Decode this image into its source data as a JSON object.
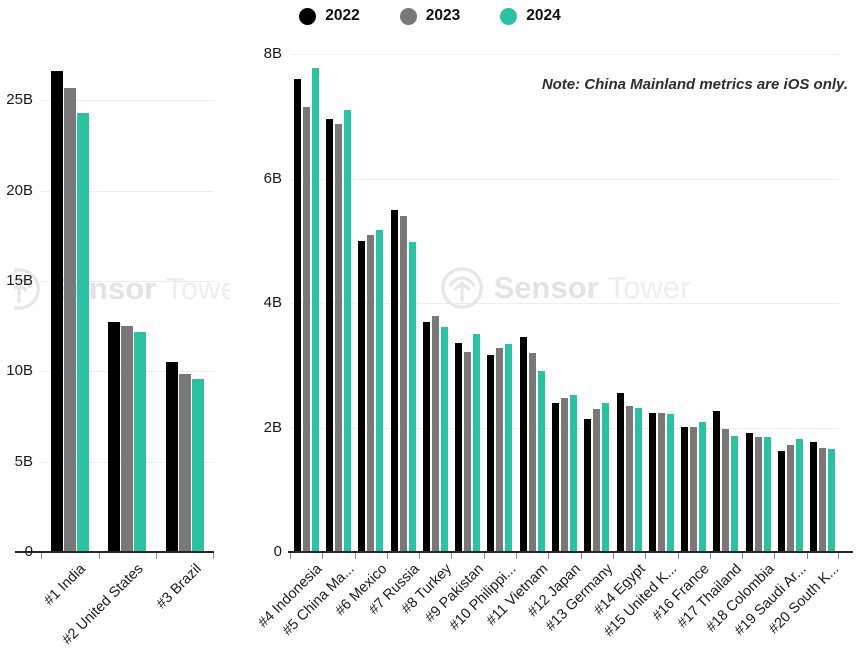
{
  "legend": {
    "items": [
      {
        "label": "2022",
        "color": "#000000"
      },
      {
        "label": "2023",
        "color": "#787878"
      },
      {
        "label": "2024",
        "color": "#2bc2a2"
      }
    ]
  },
  "note": "Note: China Mainland metrics are iOS only.",
  "watermark": {
    "icon": "sensor-tower-logo",
    "bold": "Sensor",
    "light": "Tower"
  },
  "colors": {
    "black_2022": "#000000",
    "gray_2023": "#787878",
    "teal_2024": "#2bc2a2"
  },
  "chart_data": [
    {
      "type": "bar",
      "title": "",
      "xlabel": "",
      "ylabel": "",
      "unit": "B",
      "categories": [
        "#1 India",
        "#2 United States",
        "#3 Brazil"
      ],
      "series": [
        {
          "name": "2022",
          "color": "#000000",
          "values": [
            26.6,
            12.7,
            10.5
          ]
        },
        {
          "name": "2023",
          "color": "#787878",
          "values": [
            25.7,
            12.5,
            9.85
          ]
        },
        {
          "name": "2024",
          "color": "#2bc2a2",
          "values": [
            24.3,
            12.2,
            9.6
          ]
        }
      ],
      "ylim": [
        0,
        27.5
      ],
      "yticks": [
        {
          "label": "0",
          "value": 0
        },
        {
          "label": "5B",
          "value": 5
        },
        {
          "label": "10B",
          "value": 10
        },
        {
          "label": "15B",
          "value": 15
        },
        {
          "label": "20B",
          "value": 20
        },
        {
          "label": "25B",
          "value": 25
        }
      ],
      "grid": true,
      "legend_position": "top"
    },
    {
      "type": "bar",
      "title": "",
      "xlabel": "",
      "ylabel": "",
      "unit": "B",
      "categories": [
        "#4 Indonesia",
        "#5 China Ma...",
        "#6 Mexico",
        "#7 Russia",
        "#8 Turkey",
        "#9 Pakistan",
        "#10 Philippi...",
        "#11 Vietnam",
        "#12 Japan",
        "#13 Germany",
        "#14 Egypt",
        "#15 United K...",
        "#16 France",
        "#17 Thailand",
        "#18 Colombia",
        "#19 Saudi Ar...",
        "#20 South K..."
      ],
      "series": [
        {
          "name": "2022",
          "color": "#000000",
          "values": [
            7.6,
            6.95,
            5.0,
            5.5,
            3.7,
            3.35,
            3.16,
            3.45,
            2.4,
            2.14,
            2.55,
            2.24,
            2.01,
            2.27,
            1.91,
            1.63,
            1.77
          ]
        },
        {
          "name": "2023",
          "color": "#787878",
          "values": [
            7.15,
            6.87,
            5.1,
            5.4,
            3.79,
            3.21,
            3.28,
            3.2,
            2.47,
            2.3,
            2.34,
            2.24,
            2.01,
            1.98,
            1.84,
            1.72,
            1.67
          ]
        },
        {
          "name": "2024",
          "color": "#2bc2a2",
          "values": [
            7.77,
            7.1,
            5.17,
            4.98,
            3.61,
            3.5,
            3.34,
            2.9,
            2.52,
            2.39,
            2.31,
            2.22,
            2.09,
            1.87,
            1.84,
            1.81,
            1.66
          ]
        }
      ],
      "ylim": [
        0,
        8
      ],
      "yticks": [
        {
          "label": "0",
          "value": 0
        },
        {
          "label": "2B",
          "value": 2
        },
        {
          "label": "4B",
          "value": 4
        },
        {
          "label": "6B",
          "value": 6
        },
        {
          "label": "8B",
          "value": 8
        }
      ],
      "grid": true,
      "legend_position": "top"
    }
  ]
}
